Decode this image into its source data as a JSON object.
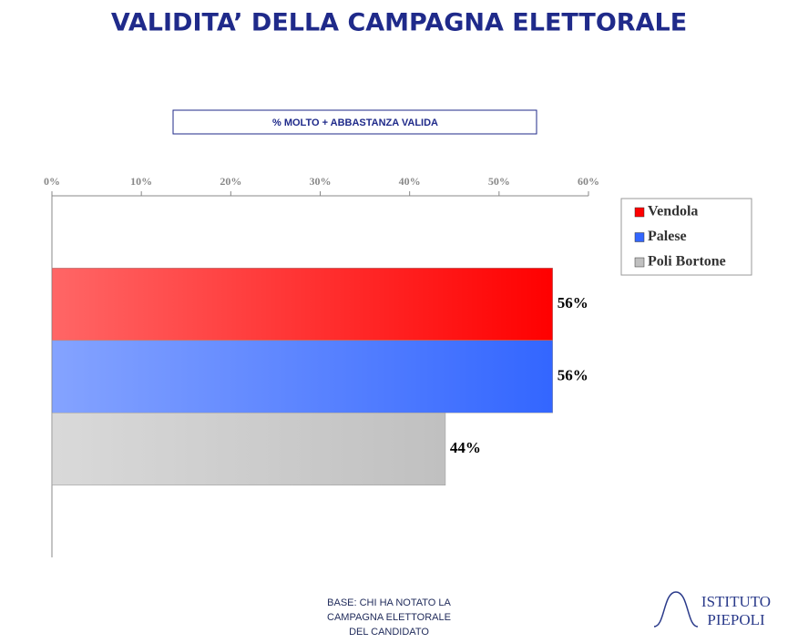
{
  "chart_data": {
    "type": "bar",
    "orientation": "horizontal",
    "title": "VALIDITA’ DELLA CAMPAGNA ELETTORALE",
    "subtitle": "% MOLTO  +  ABBASTANZA  VALIDA",
    "categories": [
      null
    ],
    "series": [
      {
        "name": "Vendola",
        "color": "#ff0000",
        "values": [
          56
        ],
        "value_labels": [
          "56%"
        ]
      },
      {
        "name": "Palese",
        "color": "#3366ff",
        "values": [
          56
        ],
        "value_labels": [
          "56%"
        ]
      },
      {
        "name": "Poli Bortone",
        "color": "#c0c0c0",
        "values": [
          44
        ],
        "value_labels": [
          "44%"
        ]
      }
    ],
    "xlim": [
      0,
      60
    ],
    "xticks": [
      {
        "value": 0,
        "label": "0%"
      },
      {
        "value": 10,
        "label": "10%"
      },
      {
        "value": 20,
        "label": "20%"
      },
      {
        "value": 30,
        "label": "30%"
      },
      {
        "value": 40,
        "label": "40%"
      },
      {
        "value": 50,
        "label": "50%"
      },
      {
        "value": 60,
        "label": "60%"
      }
    ],
    "legend": "right",
    "footnote": [
      "BASE: CHI HA NOTATO LA",
      "CAMPAGNA ELETTORALE",
      "DEL CANDIDATO"
    ],
    "logo": [
      "ISTITUTO",
      "PIEPOLI"
    ]
  }
}
